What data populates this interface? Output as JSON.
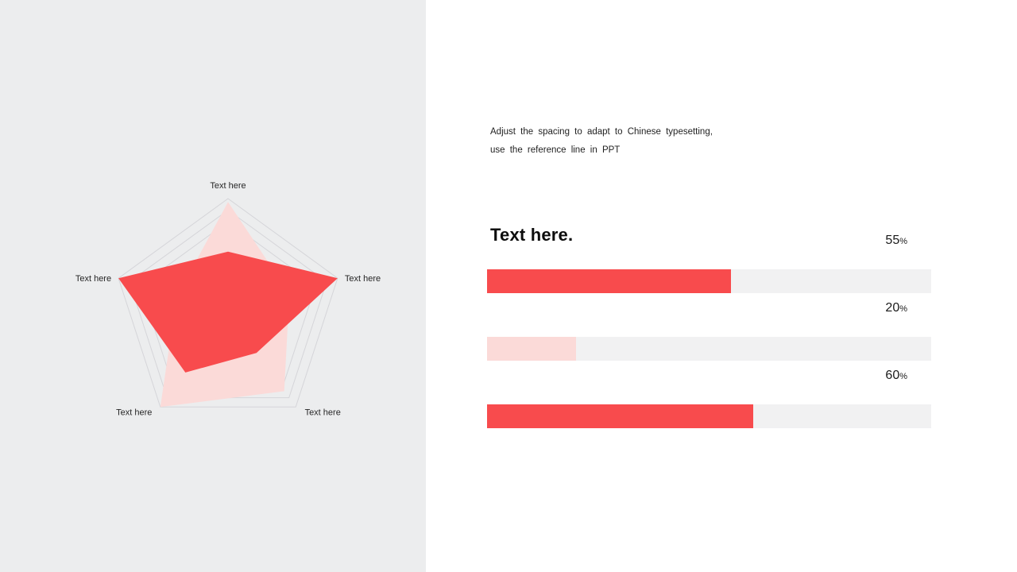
{
  "slide": {
    "left_panel_bg": "#ECEDEE",
    "right_panel_bg": "#FFFFFF"
  },
  "intro": {
    "line1": "Adjust the spacing to adapt to Chinese typesetting,",
    "line2": "use the reference line in PPT"
  },
  "heading": "Text here.",
  "colors": {
    "accent_red": "#F84B4D",
    "accent_pink": "#FBDAD8",
    "bar_track": "#F1F1F2",
    "grid_line": "#D5D5D9"
  },
  "chart_data": [
    {
      "type": "radar",
      "title": "",
      "categories": [
        "Text here",
        "Text here",
        "Text here",
        "Text here",
        "Text here"
      ],
      "axis_order": [
        "top",
        "right",
        "bottom-right",
        "bottom-left",
        "left"
      ],
      "max": 1.0,
      "grid_rings": [
        1.0,
        0.9,
        0.8
      ],
      "grid_on": true,
      "legend": "none",
      "series": [
        {
          "name": "light-series",
          "color": "#FBDAD8",
          "values": [
            0.97,
            0.56,
            0.83,
            1.0,
            0.47
          ]
        },
        {
          "name": "dark-series",
          "color": "#F84B4D",
          "values": [
            0.54,
            1.0,
            0.42,
            0.63,
            1.0
          ]
        }
      ]
    },
    {
      "type": "bar",
      "subtype": "horizontal-progress",
      "max": 100,
      "values": [
        55,
        20,
        60
      ],
      "labels": [
        "55%",
        "20%",
        "60%"
      ],
      "bar_colors": [
        "#F84B4D",
        "#FBDAD8",
        "#F84B4D"
      ],
      "track_color": "#F1F1F2"
    }
  ]
}
